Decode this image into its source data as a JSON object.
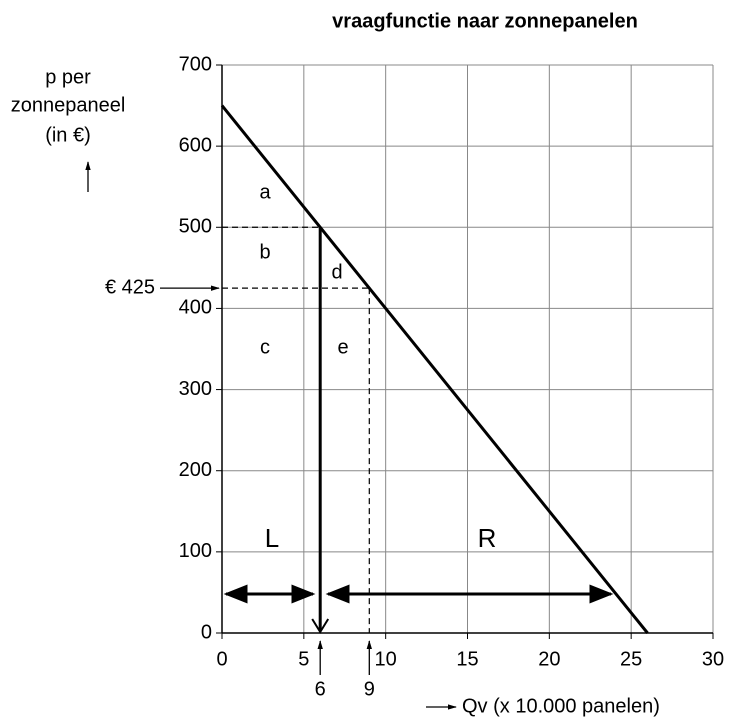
{
  "chart_data": {
    "type": "line",
    "title": "vraagfunctie naar zonnepanelen",
    "y_label": [
      "p per",
      "zonnepaneel",
      "(in €)"
    ],
    "x_label": "Qv (x 10.000 panelen)",
    "x": [
      0,
      26
    ],
    "values": [
      650,
      0
    ],
    "color": "#000000",
    "xlim": [
      0,
      30
    ],
    "ylim": [
      0,
      700
    ],
    "xticks": [
      0,
      5,
      10,
      15,
      20,
      25,
      30
    ],
    "yticks": [
      0,
      100,
      200,
      300,
      400,
      500,
      600,
      700
    ],
    "grid": true,
    "reference_points": [
      {
        "x": 6,
        "y": 500
      },
      {
        "x": 9,
        "y": 425
      }
    ],
    "price_label": "€ 425",
    "quantity_labels": [
      6,
      9
    ],
    "region_labels": [
      "a",
      "b",
      "c",
      "d",
      "e"
    ],
    "arrow_labels": [
      "L",
      "R"
    ]
  }
}
